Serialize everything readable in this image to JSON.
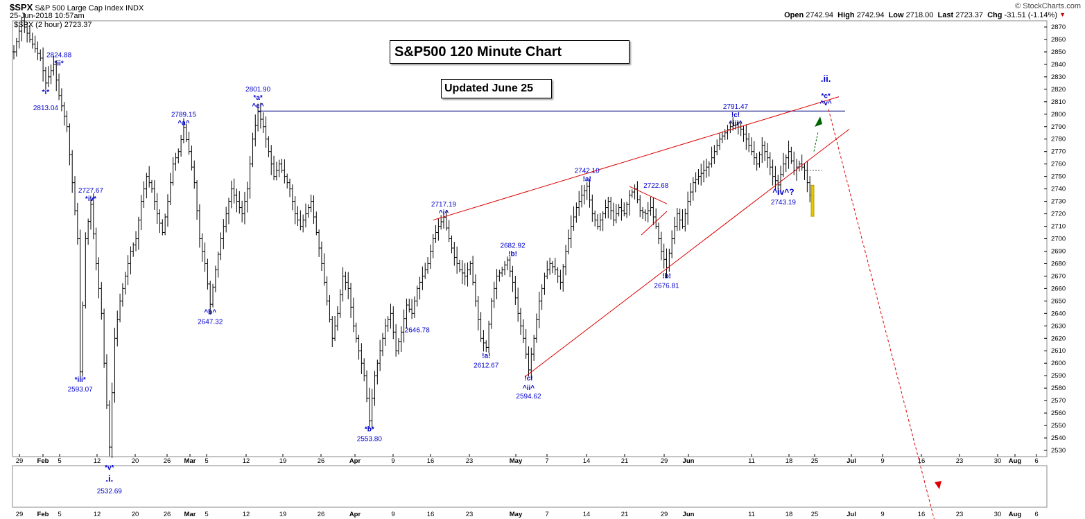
{
  "header": {
    "symbol": "$SPX",
    "name": "S&P 500 Large Cap Index",
    "exchange": "INDX",
    "date": "25-Jun-2018 10:57am",
    "source": "© StockCharts.com",
    "series_label": "$SPX (2 hour) 2723.37",
    "open_label": "Open",
    "open": "2742.94",
    "high_label": "High",
    "high": "2742.94",
    "low_label": "Low",
    "low": "2718.00",
    "last_label": "Last",
    "last": "2723.37",
    "chg_label": "Chg",
    "chg": "-31.51 (-1.14%)"
  },
  "title_box": "S&P500 120 Minute Chart",
  "updated_box": "Updated June 25",
  "colors": {
    "candle": "#000000",
    "annotation": "#0000cc",
    "trendline": "#dd0000",
    "horizontal": "#000080",
    "green_arrow": "#006400",
    "last_bar": "#e8c800"
  },
  "chart_data": {
    "type": "line",
    "subtype": "ohlc-bars",
    "ylim": [
      2525,
      2875
    ],
    "y_ticks": [
      2530,
      2540,
      2550,
      2560,
      2570,
      2580,
      2590,
      2600,
      2610,
      2620,
      2630,
      2640,
      2650,
      2660,
      2670,
      2680,
      2690,
      2700,
      2710,
      2720,
      2730,
      2740,
      2750,
      2760,
      2770,
      2780,
      2790,
      2800,
      2810,
      2820,
      2830,
      2840,
      2850,
      2860,
      2870
    ],
    "x_ticks": [
      "29",
      "Feb",
      "5",
      "12",
      "20",
      "26",
      "Mar",
      "5",
      "12",
      "19",
      "26",
      "Apr",
      "9",
      "16",
      "23",
      "May",
      "7",
      "14",
      "21",
      "29",
      "Jun",
      "11",
      "18",
      "25",
      "Jul",
      "9",
      "16",
      "23",
      "30",
      "Aug",
      "6"
    ],
    "price_path": [
      [
        0,
        2850
      ],
      [
        1.5,
        2875
      ],
      [
        3,
        2860
      ],
      [
        5,
        2845
      ],
      [
        6,
        2825
      ],
      [
        7.5,
        2840
      ],
      [
        8.5,
        2815
      ],
      [
        10,
        2790
      ],
      [
        11,
        2745
      ],
      [
        12,
        2700
      ],
      [
        12.5,
        2593.07
      ],
      [
        13.5,
        2700
      ],
      [
        14.5,
        2727.67
      ],
      [
        15.5,
        2680
      ],
      [
        16.5,
        2640
      ],
      [
        17,
        2600
      ],
      [
        18,
        2532.69
      ],
      [
        19,
        2620
      ],
      [
        20,
        2650
      ],
      [
        21,
        2670
      ],
      [
        22,
        2690
      ],
      [
        23,
        2700
      ],
      [
        24,
        2730
      ],
      [
        25,
        2750
      ],
      [
        26,
        2740
      ],
      [
        27,
        2720
      ],
      [
        28,
        2705
      ],
      [
        29,
        2730
      ],
      [
        30,
        2760
      ],
      [
        31,
        2770
      ],
      [
        32,
        2789.15
      ],
      [
        33,
        2770
      ],
      [
        34,
        2745
      ],
      [
        35,
        2700
      ],
      [
        36,
        2680
      ],
      [
        37,
        2647.32
      ],
      [
        38,
        2675
      ],
      [
        39,
        2700
      ],
      [
        40,
        2720
      ],
      [
        41,
        2740
      ],
      [
        42,
        2730
      ],
      [
        43,
        2720
      ],
      [
        44,
        2740
      ],
      [
        45,
        2780
      ],
      [
        46,
        2801.9
      ],
      [
        47,
        2790
      ],
      [
        48,
        2770
      ],
      [
        49,
        2750
      ],
      [
        50,
        2760
      ],
      [
        51,
        2750
      ],
      [
        52,
        2740
      ],
      [
        53,
        2720
      ],
      [
        54,
        2710
      ],
      [
        55,
        2720
      ],
      [
        56,
        2730
      ],
      [
        57,
        2705
      ],
      [
        58,
        2680
      ],
      [
        59,
        2650
      ],
      [
        60,
        2620
      ],
      [
        61,
        2640
      ],
      [
        62,
        2670
      ],
      [
        63,
        2660
      ],
      [
        64,
        2630
      ],
      [
        65,
        2610
      ],
      [
        66,
        2590
      ],
      [
        67,
        2553.8
      ],
      [
        68,
        2590
      ],
      [
        69,
        2610
      ],
      [
        70,
        2630
      ],
      [
        71,
        2640
      ],
      [
        72,
        2610
      ],
      [
        73,
        2625
      ],
      [
        74,
        2646.78
      ],
      [
        75,
        2640
      ],
      [
        76,
        2660
      ],
      [
        77,
        2670
      ],
      [
        78,
        2680
      ],
      [
        79,
        2700
      ],
      [
        80,
        2710
      ],
      [
        81,
        2717.19
      ],
      [
        82,
        2700
      ],
      [
        83,
        2685
      ],
      [
        84,
        2675
      ],
      [
        85,
        2670
      ],
      [
        86,
        2680
      ],
      [
        87,
        2650
      ],
      [
        88,
        2620
      ],
      [
        89,
        2612.67
      ],
      [
        90,
        2650
      ],
      [
        91,
        2670
      ],
      [
        92,
        2675
      ],
      [
        93,
        2682.92
      ],
      [
        94,
        2665
      ],
      [
        95,
        2640
      ],
      [
        96,
        2620
      ],
      [
        97,
        2594.62
      ],
      [
        98,
        2620
      ],
      [
        99,
        2650
      ],
      [
        100,
        2670
      ],
      [
        101,
        2680
      ],
      [
        102,
        2675
      ],
      [
        103,
        2665
      ],
      [
        104,
        2690
      ],
      [
        105,
        2710
      ],
      [
        106,
        2725
      ],
      [
        107,
        2735
      ],
      [
        108,
        2742.1
      ],
      [
        109,
        2720
      ],
      [
        110,
        2710
      ],
      [
        111,
        2720
      ],
      [
        112,
        2730
      ],
      [
        113,
        2715
      ],
      [
        114,
        2725
      ],
      [
        115,
        2720
      ],
      [
        116,
        2735
      ],
      [
        117,
        2740
      ],
      [
        118,
        2722.68
      ],
      [
        119,
        2720
      ],
      [
        120,
        2725
      ],
      [
        121,
        2710
      ],
      [
        122,
        2690
      ],
      [
        123,
        2676.81
      ],
      [
        124,
        2700
      ],
      [
        125,
        2720
      ],
      [
        126,
        2710
      ],
      [
        127,
        2730
      ],
      [
        128,
        2745
      ],
      [
        129,
        2750
      ],
      [
        130,
        2755
      ],
      [
        131,
        2760
      ],
      [
        132,
        2770
      ],
      [
        133,
        2780
      ],
      [
        134,
        2785
      ],
      [
        135,
        2790
      ],
      [
        136,
        2791.47
      ],
      [
        137,
        2788
      ],
      [
        138,
        2780
      ],
      [
        139,
        2770
      ],
      [
        140,
        2760
      ],
      [
        141,
        2775
      ],
      [
        142,
        2765
      ],
      [
        143,
        2750
      ],
      [
        144,
        2743.19
      ],
      [
        145,
        2760
      ],
      [
        146,
        2770
      ],
      [
        147,
        2755
      ],
      [
        148,
        2760
      ],
      [
        149,
        2755
      ],
      [
        150,
        2735
      ],
      [
        150.5,
        2723.37
      ]
    ],
    "annotations": [
      {
        "text": "*ii*",
        "x": 8.5,
        "y": 2837,
        "pos": "above",
        "value": "2824.88"
      },
      {
        "text": "*i*",
        "x": 6,
        "y": 2815,
        "pos": "above",
        "value": "2813.04",
        "value_below": true
      },
      {
        "text": "*iv*",
        "x": 14.5,
        "y": 2728,
        "pos": "above",
        "value": "2727.67"
      },
      {
        "text": "*iii*",
        "x": 12.5,
        "y": 2593,
        "pos": "below",
        "value": "2593.07"
      },
      {
        "text": "^a^",
        "x": 32,
        "y": 2789,
        "pos": "above",
        "value": "2789.15"
      },
      {
        "text": "^b^",
        "x": 37,
        "y": 2647,
        "pos": "below",
        "value": "2647.32"
      },
      {
        "text": "*a*",
        "x": 46,
        "y": 2806,
        "pos": "above",
        "value": "2801.90",
        "sub": "^c^"
      },
      {
        "text": "*b*",
        "x": 67,
        "y": 2553,
        "pos": "below",
        "value": "2553.80"
      },
      {
        "text": "2646.78",
        "x": 76,
        "y": 2625,
        "pos": "plain"
      },
      {
        "text": "^i^",
        "x": 81,
        "y": 2717,
        "pos": "above",
        "value": "2717.19"
      },
      {
        "text": "!a!",
        "x": 89,
        "y": 2612,
        "pos": "below",
        "value": "2612.67"
      },
      {
        "text": "!b!",
        "x": 94,
        "y": 2684,
        "pos": "above",
        "value": "2682.92"
      },
      {
        "text": "!c!",
        "x": 97,
        "y": 2594,
        "pos": "below",
        "value": "2594.62",
        "sub": "^ii^"
      },
      {
        "text": "!a!",
        "x": 108,
        "y": 2744,
        "pos": "above",
        "value": "2742.10"
      },
      {
        "text": "2722.68",
        "x": 121,
        "y": 2741,
        "pos": "plain"
      },
      {
        "text": "!b!",
        "x": 123,
        "y": 2676,
        "pos": "below",
        "value": "2676.81"
      },
      {
        "text": "!c!",
        "x": 136,
        "y": 2792,
        "pos": "above",
        "value": "2791.47",
        "sub": "^iii^"
      },
      {
        "text": "^iv^?",
        "x": 145,
        "y": 2743,
        "pos": "below",
        "value": "2743.19"
      },
      {
        "text": ".ii.",
        "x": 153,
        "y": 2826,
        "pos": "plain"
      },
      {
        "text": "*c*",
        "x": 153,
        "y": 2813,
        "pos": "plain"
      },
      {
        "text": "^v^",
        "x": 153,
        "y": 2807,
        "pos": "plain"
      },
      {
        "text": "*v*",
        "x": 18,
        "y": 2520,
        "pos": "below-panel"
      },
      {
        "text": ".i.",
        "x": 18,
        "y": 2512,
        "pos": "below-panel"
      },
      {
        "text": "2532.69",
        "x": 18,
        "y": 2504,
        "pos": "below-panel"
      }
    ],
    "hline": 2802.5
  }
}
